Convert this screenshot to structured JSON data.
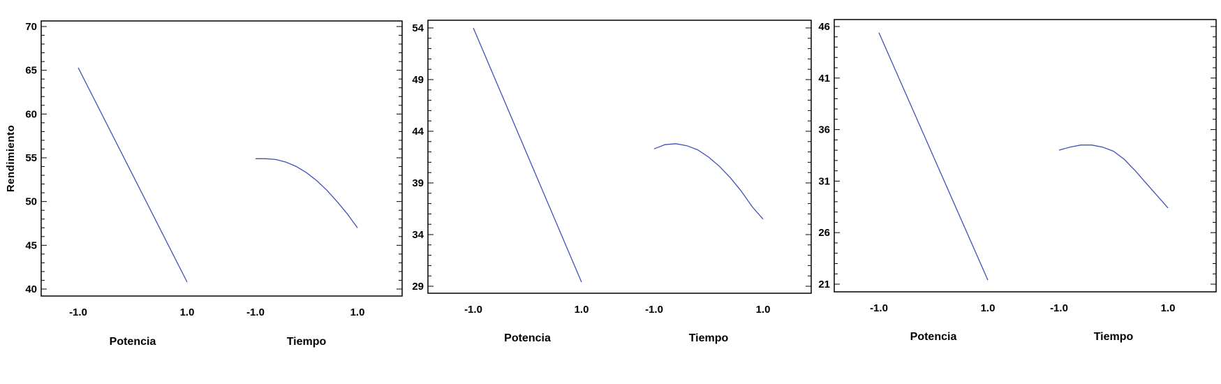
{
  "chart_data": [
    {
      "type": "line",
      "title": "",
      "ylabel": "Rendimiento",
      "ylim": [
        40,
        70
      ],
      "yticks": [
        40,
        45,
        50,
        55,
        60,
        65,
        70
      ],
      "factors": [
        {
          "xlabel": "Potencia",
          "ticks": [
            "-1.0",
            "1.0"
          ],
          "x": [
            -1.0,
            1.0
          ],
          "y": [
            65.3,
            40.8
          ]
        },
        {
          "xlabel": "Tiempo",
          "ticks": [
            "-1.0",
            "1.0"
          ],
          "x": [
            -1.0,
            -0.8,
            -0.6,
            -0.4,
            -0.2,
            0.0,
            0.2,
            0.4,
            0.6,
            0.8,
            1.0
          ],
          "y": [
            54.9,
            54.9,
            54.8,
            54.5,
            54.0,
            53.3,
            52.4,
            51.3,
            50.0,
            48.6,
            47.0
          ]
        }
      ],
      "grid": false,
      "legend": "none"
    },
    {
      "type": "line",
      "title": "",
      "ylabel": "",
      "ylim": [
        29,
        54
      ],
      "yticks": [
        29,
        34,
        39,
        44,
        49,
        54
      ],
      "factors": [
        {
          "xlabel": "Potencia",
          "ticks": [
            "-1.0",
            "1.0"
          ],
          "x": [
            -1.0,
            1.0
          ],
          "y": [
            54.0,
            29.4
          ]
        },
        {
          "xlabel": "Tiempo",
          "ticks": [
            "-1.0",
            "1.0"
          ],
          "x": [
            -1.0,
            -0.8,
            -0.6,
            -0.4,
            -0.2,
            0.0,
            0.2,
            0.4,
            0.6,
            0.8,
            1.0
          ],
          "y": [
            42.3,
            42.7,
            42.8,
            42.6,
            42.2,
            41.5,
            40.6,
            39.5,
            38.2,
            36.7,
            35.5
          ]
        }
      ],
      "grid": false,
      "legend": "none"
    },
    {
      "type": "line",
      "title": "",
      "ylabel": "",
      "ylim": [
        21,
        46
      ],
      "yticks": [
        21,
        26,
        31,
        36,
        41,
        46
      ],
      "factors": [
        {
          "xlabel": "Potencia",
          "ticks": [
            "-1.0",
            "1.0"
          ],
          "x": [
            -1.0,
            1.0
          ],
          "y": [
            45.4,
            21.4
          ]
        },
        {
          "xlabel": "Tiempo",
          "ticks": [
            "-1.0",
            "1.0"
          ],
          "x": [
            -1.0,
            -0.8,
            -0.6,
            -0.4,
            -0.2,
            0.0,
            0.2,
            0.4,
            0.6,
            0.8,
            1.0
          ],
          "y": [
            34.0,
            34.3,
            34.5,
            34.5,
            34.3,
            33.9,
            33.1,
            32.0,
            30.8,
            29.6,
            28.4
          ]
        }
      ],
      "grid": false,
      "legend": "none"
    }
  ],
  "colors": {
    "line": "#3f51b5",
    "axis": "#000000"
  }
}
